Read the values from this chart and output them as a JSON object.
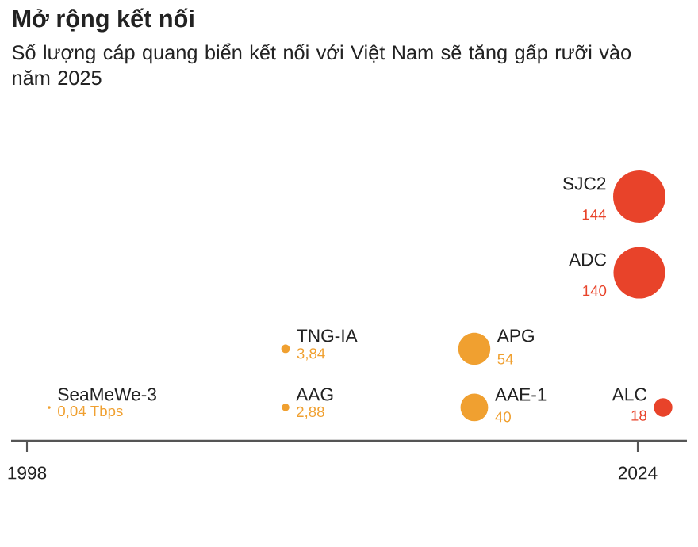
{
  "chart_data": {
    "type": "other",
    "title": "Mở rộng kết nối",
    "subtitle": "Số lượng cáp quang biển kết nối với Việt Nam sẽ tăng gấp rưỡi vào năm 2025",
    "categories": [
      "SeaMeWe-3",
      "TNG-IA",
      "AAG",
      "APG",
      "AAE-1",
      "ALC",
      "ADC",
      "SJC2"
    ],
    "values": [
      0.04,
      3.84,
      2.88,
      54,
      40,
      18,
      140,
      144
    ],
    "value_labels": [
      "0,04 Tbps",
      "3,84",
      "2,88",
      "54",
      "40",
      "18",
      "140",
      "144"
    ],
    "colors": [
      "#f0a030",
      "#f0a030",
      "#f0a030",
      "#f0a030",
      "#f0a030",
      "#e8432a",
      "#e8432a",
      "#e8432a"
    ],
    "annotations": [
      "1998",
      "2024"
    ]
  }
}
